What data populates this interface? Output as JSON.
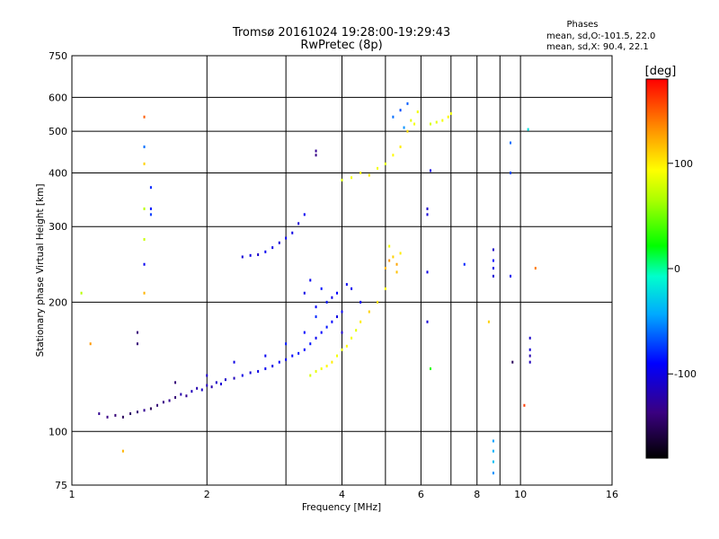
{
  "chart_data": {
    "type": "scatter",
    "title": "Tromsø 20161024 19:28:00-19:29:43",
    "subtitle": "RwPretec (8p)",
    "xlabel": "Frequency [MHz]",
    "ylabel": "Stationary phase Virtual Height [km]",
    "xscale": "log",
    "yscale": "log",
    "xlim": [
      1,
      16
    ],
    "ylim": [
      75,
      750
    ],
    "xticks": [
      1,
      2,
      4,
      6,
      8,
      10,
      16
    ],
    "xtick_labels": [
      "1",
      "2",
      "4",
      "6",
      "8",
      "10",
      "16"
    ],
    "yticks": [
      75,
      100,
      200,
      300,
      400,
      500,
      600,
      750
    ],
    "ytick_labels": [
      "75",
      "100",
      "200",
      "300",
      "400",
      "500",
      "600",
      "750"
    ],
    "grid": true,
    "stats": {
      "heading": "Phases",
      "line1": "mean, sd,O:-101.5, 22.0",
      "line2": "mean, sd,X:  90.4, 22.1"
    },
    "colorbar": {
      "label": "[deg]",
      "min": -180,
      "max": 180,
      "ticks": [
        100,
        0,
        -100
      ],
      "tick_labels": [
        "100",
        "0",
        "-100"
      ],
      "colormap": "rainbow"
    },
    "points": [
      [
        1.15,
        110,
        -130
      ],
      [
        1.2,
        108,
        -135
      ],
      [
        1.25,
        109,
        -140
      ],
      [
        1.3,
        108,
        -150
      ],
      [
        1.35,
        110,
        -145
      ],
      [
        1.4,
        111,
        -140
      ],
      [
        1.45,
        112,
        -130
      ],
      [
        1.5,
        113,
        -150
      ],
      [
        1.55,
        115,
        -140
      ],
      [
        1.6,
        117,
        -135
      ],
      [
        1.65,
        118,
        -130
      ],
      [
        1.7,
        120,
        -140
      ],
      [
        1.75,
        122,
        -120
      ],
      [
        1.8,
        121,
        -130
      ],
      [
        1.85,
        124,
        -115
      ],
      [
        1.9,
        126,
        -120
      ],
      [
        1.95,
        125,
        -110
      ],
      [
        2.0,
        128,
        -115
      ],
      [
        2.05,
        127,
        -120
      ],
      [
        2.1,
        130,
        -110
      ],
      [
        2.15,
        129,
        -105
      ],
      [
        2.2,
        132,
        -110
      ],
      [
        2.3,
        133,
        -115
      ],
      [
        2.4,
        135,
        -100
      ],
      [
        2.5,
        137,
        -105
      ],
      [
        2.6,
        138,
        -100
      ],
      [
        2.7,
        140,
        -95
      ],
      [
        2.8,
        142,
        -100
      ],
      [
        2.9,
        145,
        -90
      ],
      [
        3.0,
        147,
        -95
      ],
      [
        3.1,
        150,
        -90
      ],
      [
        3.2,
        152,
        -85
      ],
      [
        3.3,
        155,
        -90
      ],
      [
        3.4,
        160,
        -85
      ],
      [
        3.5,
        165,
        -95
      ],
      [
        3.6,
        170,
        -90
      ],
      [
        3.7,
        175,
        -85
      ],
      [
        3.8,
        180,
        -90
      ],
      [
        3.9,
        185,
        -100
      ],
      [
        4.0,
        190,
        -95
      ],
      [
        1.7,
        130,
        -140
      ],
      [
        2.0,
        135,
        -110
      ],
      [
        2.3,
        145,
        -100
      ],
      [
        2.7,
        150,
        -95
      ],
      [
        3.0,
        160,
        -85
      ],
      [
        3.3,
        170,
        -90
      ],
      [
        3.5,
        185,
        -80
      ],
      [
        3.7,
        200,
        -85
      ],
      [
        3.9,
        210,
        -90
      ],
      [
        4.1,
        220,
        -95
      ],
      [
        3.3,
        210,
        -100
      ],
      [
        3.4,
        225,
        -95
      ],
      [
        3.5,
        195,
        -90
      ],
      [
        3.6,
        215,
        -85
      ],
      [
        3.8,
        205,
        -100
      ],
      [
        4.0,
        170,
        -110
      ],
      [
        4.2,
        215,
        -95
      ],
      [
        4.4,
        200,
        -90
      ],
      [
        3.4,
        135,
        80
      ],
      [
        3.5,
        138,
        85
      ],
      [
        3.6,
        140,
        90
      ],
      [
        3.7,
        142,
        95
      ],
      [
        3.8,
        145,
        100
      ],
      [
        3.9,
        150,
        90
      ],
      [
        4.0,
        155,
        85
      ],
      [
        4.1,
        158,
        95
      ],
      [
        4.2,
        165,
        90
      ],
      [
        4.3,
        172,
        85
      ],
      [
        4.4,
        180,
        100
      ],
      [
        4.6,
        190,
        110
      ],
      [
        4.8,
        200,
        105
      ],
      [
        5.0,
        215,
        95
      ],
      [
        2.4,
        255,
        -105
      ],
      [
        2.5,
        257,
        -100
      ],
      [
        2.6,
        258,
        -110
      ],
      [
        2.7,
        262,
        -95
      ],
      [
        2.8,
        268,
        -100
      ],
      [
        2.9,
        275,
        -105
      ],
      [
        3.0,
        282,
        -95
      ],
      [
        3.1,
        290,
        -100
      ],
      [
        3.2,
        305,
        -105
      ],
      [
        3.3,
        320,
        -95
      ],
      [
        3.5,
        450,
        -130
      ],
      [
        3.5,
        440,
        -135
      ],
      [
        4.0,
        385,
        80
      ],
      [
        4.2,
        390,
        90
      ],
      [
        4.4,
        400,
        95
      ],
      [
        4.6,
        395,
        100
      ],
      [
        4.8,
        410,
        90
      ],
      [
        5.0,
        420,
        85
      ],
      [
        5.2,
        440,
        95
      ],
      [
        5.4,
        460,
        100
      ],
      [
        5.6,
        500,
        105
      ],
      [
        5.8,
        520,
        90
      ],
      [
        5.2,
        540,
        -60
      ],
      [
        5.4,
        560,
        -70
      ],
      [
        5.6,
        580,
        -65
      ],
      [
        5.5,
        510,
        -50
      ],
      [
        5.7,
        530,
        85
      ],
      [
        5.9,
        555,
        90
      ],
      [
        6.3,
        520,
        80
      ],
      [
        6.5,
        525,
        85
      ],
      [
        6.7,
        530,
        90
      ],
      [
        6.9,
        540,
        95
      ],
      [
        7.0,
        550,
        88
      ],
      [
        5.0,
        240,
        120
      ],
      [
        5.1,
        250,
        130
      ],
      [
        5.2,
        255,
        110
      ],
      [
        5.3,
        245,
        125
      ],
      [
        5.4,
        260,
        100
      ],
      [
        5.1,
        270,
        90
      ],
      [
        5.3,
        235,
        115
      ],
      [
        1.45,
        540,
        150
      ],
      [
        1.45,
        460,
        -60
      ],
      [
        1.45,
        420,
        110
      ],
      [
        1.45,
        330,
        70
      ],
      [
        1.45,
        280,
        75
      ],
      [
        1.45,
        245,
        -95
      ],
      [
        1.45,
        210,
        120
      ],
      [
        1.5,
        370,
        -80
      ],
      [
        1.5,
        330,
        -85
      ],
      [
        1.5,
        320,
        -75
      ],
      [
        1.05,
        210,
        70
      ],
      [
        1.1,
        160,
        130
      ],
      [
        1.3,
        90,
        120
      ],
      [
        1.4,
        170,
        -140
      ],
      [
        1.4,
        160,
        -140
      ],
      [
        6.2,
        330,
        -110
      ],
      [
        6.2,
        320,
        -105
      ],
      [
        6.2,
        235,
        -100
      ],
      [
        6.2,
        180,
        -105
      ],
      [
        6.3,
        405,
        -100
      ],
      [
        6.3,
        140,
        30
      ],
      [
        7.5,
        245,
        -80
      ],
      [
        8.5,
        180,
        110
      ],
      [
        8.7,
        265,
        -110
      ],
      [
        8.7,
        250,
        -90
      ],
      [
        8.7,
        240,
        -100
      ],
      [
        8.7,
        230,
        -105
      ],
      [
        9.5,
        470,
        -60
      ],
      [
        9.5,
        400,
        -70
      ],
      [
        9.5,
        230,
        -95
      ],
      [
        10.4,
        505,
        -20
      ],
      [
        10.8,
        240,
        140
      ],
      [
        8.7,
        95,
        -45
      ],
      [
        8.7,
        90,
        -40
      ],
      [
        8.7,
        85,
        -35
      ],
      [
        8.7,
        80,
        -50
      ],
      [
        9.6,
        145,
        -150
      ],
      [
        10.2,
        115,
        160
      ],
      [
        10.5,
        165,
        -110
      ],
      [
        10.5,
        155,
        -105
      ],
      [
        10.5,
        150,
        -120
      ],
      [
        10.5,
        145,
        -115
      ]
    ]
  }
}
